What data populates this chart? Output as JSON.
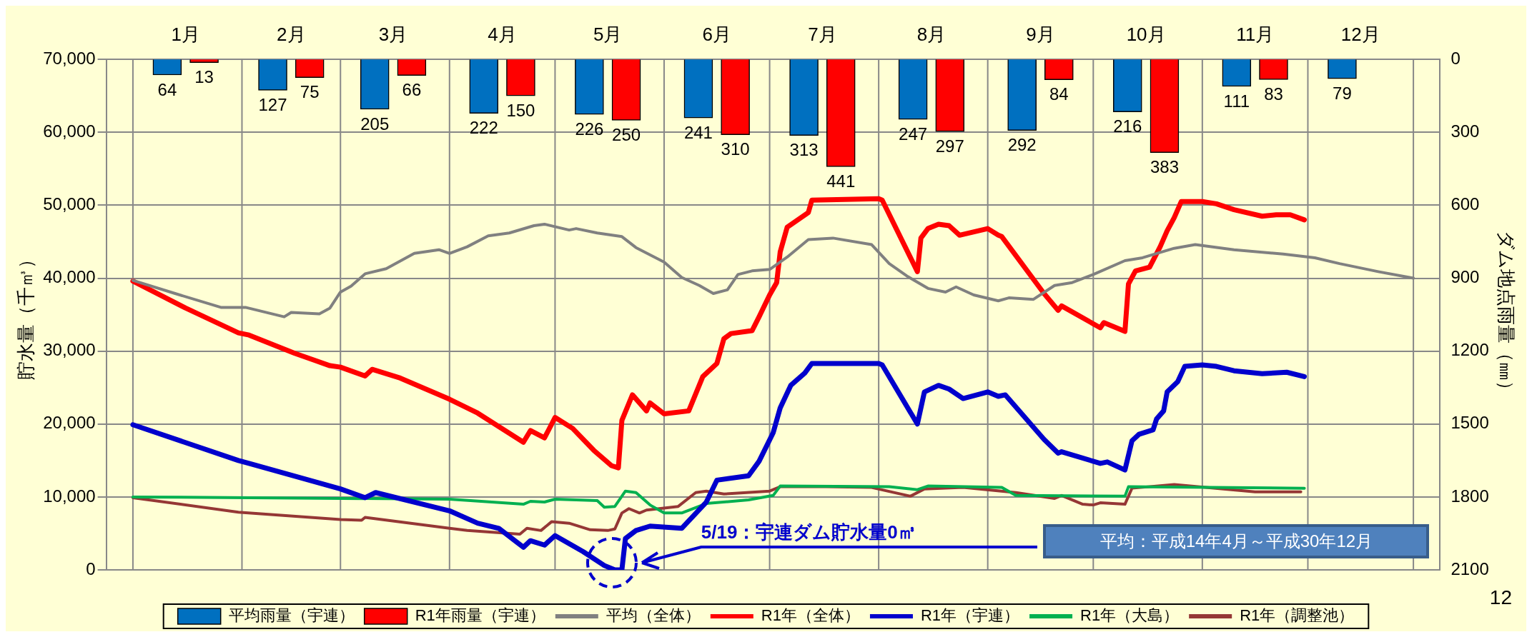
{
  "chart_data": {
    "type": "bar",
    "xlim": [
      "--01-01",
      "--12-31"
    ],
    "xticks": [
      {
        "value": "--01-01",
        "label": null
      },
      {
        "value": "--01-16",
        "label": "1月"
      },
      {
        "value": "--02-01",
        "label": null
      },
      {
        "value": "--02-15",
        "label": "2月"
      },
      {
        "value": "--03-01",
        "label": null
      },
      {
        "value": "--03-16",
        "label": "3月"
      },
      {
        "value": "--04-01",
        "label": null
      },
      {
        "value": "--04-16",
        "label": "4月"
      },
      {
        "value": "--05-01",
        "label": null
      },
      {
        "value": "--05-16",
        "label": "5月"
      },
      {
        "value": "--06-01",
        "label": null
      },
      {
        "value": "--06-16",
        "label": "6月"
      },
      {
        "value": "--07-01",
        "label": null
      },
      {
        "value": "--07-16",
        "label": "7月"
      },
      {
        "value": "--08-01",
        "label": null
      },
      {
        "value": "--08-16",
        "label": "8月"
      },
      {
        "value": "--09-01",
        "label": null
      },
      {
        "value": "--09-16",
        "label": "9月"
      },
      {
        "value": "--10-01",
        "label": null
      },
      {
        "value": "--10-16",
        "label": "10月"
      },
      {
        "value": "--11-01",
        "label": null
      },
      {
        "value": "--11-16",
        "label": "11月"
      },
      {
        "value": "--12-01",
        "label": null
      },
      {
        "value": "--12-16",
        "label": "12月"
      },
      {
        "value": "--12-31",
        "label": null
      }
    ],
    "ylabel": "貯水量（千㎥）",
    "y2label": "ダム地点雨量（㎜）",
    "ylim": [
      0,
      70000
    ],
    "yticks": [
      {
        "value": 0,
        "label": "0"
      },
      {
        "value": 10000,
        "label": "10,000"
      },
      {
        "value": 20000,
        "label": "20,000"
      },
      {
        "value": 30000,
        "label": "30,000"
      },
      {
        "value": 40000,
        "label": "40,000"
      },
      {
        "value": 50000,
        "label": "50,000"
      },
      {
        "value": 60000,
        "label": "60,000"
      },
      {
        "value": 70000,
        "label": "70,000"
      }
    ],
    "y2lim": [
      2100,
      0
    ],
    "y2ticks": [
      0,
      300,
      600,
      900,
      1200,
      1500,
      1800,
      2100
    ],
    "grid": true,
    "legend": "bottom",
    "annotations": [
      "5/19：宇連ダム貯水量0㎥",
      "平均：平成14年4月～平成30年12月",
      "12"
    ],
    "series": [
      {
        "name": "平均雨量（宇連）",
        "axis": "y2",
        "color": "#0070c0",
        "x": [
          "--01-16",
          "--02-15",
          "--03-16",
          "--04-16",
          "--05-16",
          "--06-16",
          "--07-16",
          "--08-16",
          "--09-16",
          "--10-16",
          "--11-16",
          "--12-16"
        ],
        "values": [
          64,
          127,
          205,
          222,
          226,
          241,
          313,
          247,
          292,
          216,
          111,
          79
        ],
        "value_labels": [
          "64",
          "127",
          "205",
          "222",
          "226",
          "241",
          "313",
          "247",
          "292",
          "216",
          "111",
          "79"
        ]
      },
      {
        "name": "R1年雨量（宇連）",
        "axis": "y2",
        "color": "#ff0000",
        "x": [
          "--01-16",
          "--02-15",
          "--03-16",
          "--04-16",
          "--05-16",
          "--06-16",
          "--07-16",
          "--08-16",
          "--09-16",
          "--10-16",
          "--11-16"
        ],
        "values": [
          13,
          75,
          66,
          150,
          250,
          310,
          441,
          297,
          84,
          383,
          83
        ],
        "value_labels": [
          "13",
          "75",
          "66",
          "150",
          "250",
          "310",
          "441",
          "297",
          "84",
          "383",
          "83"
        ]
      },
      {
        "name": "平均（全体）",
        "type": "line",
        "color": "#808080",
        "x": [
          "--01-01",
          "--01-13",
          "--01-26",
          "--02-02",
          "--02-13",
          "--02-15",
          "--02-23",
          "--02-26",
          "--03-01",
          "--03-04",
          "--03-08",
          "--03-14",
          "--03-22",
          "--03-29",
          "--04-01",
          "--04-06",
          "--04-12",
          "--04-18",
          "--04-25",
          "--04-28",
          "--05-05",
          "--05-07",
          "--05-13",
          "--05-20",
          "--05-24",
          "--06-01",
          "--06-06",
          "--06-11",
          "--06-15",
          "--06-19",
          "--06-22",
          "--06-26",
          "--07-01",
          "--07-06",
          "--07-12",
          "--07-19",
          "--07-30",
          "--08-04",
          "--08-09",
          "--08-15",
          "--08-20",
          "--08-23",
          "--08-28",
          "--09-04",
          "--09-07",
          "--09-14",
          "--09-20",
          "--09-25",
          "--10-01",
          "--10-10",
          "--10-15",
          "--10-24",
          "--10-30",
          "--11-10",
          "--11-24",
          "--12-03",
          "--12-10",
          "--12-21",
          "--12-31"
        ],
        "values": [
          39700,
          37900,
          36000,
          36000,
          34700,
          35300,
          35100,
          35900,
          38100,
          38900,
          40600,
          41300,
          43400,
          43900,
          43400,
          44300,
          45800,
          46200,
          47200,
          47400,
          46600,
          46800,
          46200,
          45700,
          44200,
          42200,
          40100,
          39000,
          37900,
          38400,
          40500,
          41000,
          41200,
          42900,
          45300,
          45500,
          44600,
          42000,
          40300,
          38600,
          38100,
          38800,
          37700,
          36900,
          37300,
          37100,
          39000,
          39400,
          40500,
          42400,
          42800,
          44100,
          44600,
          43900,
          43300,
          42800,
          42000,
          40900,
          40000
        ]
      },
      {
        "name": "R1年（全体）",
        "type": "line",
        "color": "#ff0000",
        "x": [
          "--01-01",
          "--01-16",
          "--01-31",
          "--02-03",
          "--02-16",
          "--02-26",
          "--03-01",
          "--03-08",
          "--03-10",
          "--03-18",
          "--04-01",
          "--04-09",
          "--04-22",
          "--04-24",
          "--04-28",
          "--05-01",
          "--05-06",
          "--05-12",
          "--05-17",
          "--05-19",
          "--05-20",
          "--05-23",
          "--05-27",
          "--05-28",
          "--06-01",
          "--06-08",
          "--06-12",
          "--06-16",
          "--06-18",
          "--06-20",
          "--06-26",
          "--06-28",
          "--07-01",
          "--07-03",
          "--07-04",
          "--07-06",
          "--07-12",
          "--07-13",
          "--08-01",
          "--08-02",
          "--08-12",
          "--08-13",
          "--08-15",
          "--08-18",
          "--08-21",
          "--08-24",
          "--09-01",
          "--09-04",
          "--09-05",
          "--09-17",
          "--09-21",
          "--09-22",
          "--10-03",
          "--10-04",
          "--10-10",
          "--10-11",
          "--10-13",
          "--10-17",
          "--10-20",
          "--10-22",
          "--10-24",
          "--10-26",
          "--11-01",
          "--11-05",
          "--11-10",
          "--11-18",
          "--11-22",
          "--11-26",
          "--11-30"
        ],
        "values": [
          39600,
          35900,
          32500,
          32200,
          29700,
          28000,
          27800,
          26600,
          27500,
          26300,
          23400,
          21500,
          17500,
          19100,
          18100,
          20900,
          19400,
          16400,
          14300,
          14000,
          20500,
          24000,
          21800,
          22900,
          21400,
          21800,
          26500,
          28300,
          31700,
          32400,
          32800,
          34700,
          37700,
          39400,
          43600,
          47000,
          49000,
          50700,
          50900,
          50700,
          40900,
          45500,
          46800,
          47400,
          47200,
          45900,
          46800,
          45900,
          45700,
          37900,
          35600,
          36200,
          33200,
          33900,
          32700,
          39200,
          41000,
          41500,
          44300,
          46500,
          48300,
          50500,
          50500,
          50200,
          49400,
          48500,
          48700,
          48700,
          48000
        ]
      },
      {
        "name": "R1年（宇連）",
        "type": "line",
        "color": "#0000cc",
        "x": [
          "--01-01",
          "--01-31",
          "--02-03",
          "--03-01",
          "--03-08",
          "--03-11",
          "--04-01",
          "--04-09",
          "--04-15",
          "--04-22",
          "--04-24",
          "--04-28",
          "--05-01",
          "--05-09",
          "--05-15",
          "--05-18",
          "--05-20",
          "--05-21",
          "--05-24",
          "--05-28",
          "--06-06",
          "--06-13",
          "--06-16",
          "--06-25",
          "--06-28",
          "--07-02",
          "--07-04",
          "--07-07",
          "--07-11",
          "--07-13",
          "--08-01",
          "--08-02",
          "--08-12",
          "--08-14",
          "--08-18",
          "--08-21",
          "--08-25",
          "--09-01",
          "--09-04",
          "--09-06",
          "--09-17",
          "--09-21",
          "--09-22",
          "--10-03",
          "--10-05",
          "--10-10",
          "--10-12",
          "--10-14",
          "--10-18",
          "--10-19",
          "--10-21",
          "--10-22",
          "--10-25",
          "--10-27",
          "--11-01",
          "--11-05",
          "--11-10",
          "--11-18",
          "--11-25",
          "--11-30"
        ],
        "values": [
          19900,
          15000,
          14600,
          11100,
          9900,
          10600,
          8100,
          6400,
          5700,
          3100,
          4000,
          3400,
          4700,
          2500,
          600,
          0,
          0,
          4300,
          5400,
          6000,
          5700,
          9300,
          12300,
          12900,
          14900,
          18800,
          22200,
          25300,
          27000,
          28300,
          28300,
          28100,
          20000,
          24400,
          25300,
          24800,
          23500,
          24400,
          23800,
          24000,
          17900,
          16000,
          16200,
          14600,
          14800,
          13700,
          17700,
          18600,
          19200,
          20700,
          21800,
          24400,
          25800,
          27900,
          28100,
          27900,
          27300,
          26900,
          27100,
          26500
        ]
      },
      {
        "name": "R1年（大島）",
        "type": "line",
        "color": "#00b050",
        "x": [
          "--01-01",
          "--04-01",
          "--04-22",
          "--04-24",
          "--04-28",
          "--05-01",
          "--05-13",
          "--05-15",
          "--05-18",
          "--05-21",
          "--05-24",
          "--05-28",
          "--06-01",
          "--06-06",
          "--06-13",
          "--06-25",
          "--07-02",
          "--07-04",
          "--08-04",
          "--08-12",
          "--08-15",
          "--09-05",
          "--09-09",
          "--10-10",
          "--10-11",
          "--11-30"
        ],
        "values": [
          10000,
          9700,
          9000,
          9400,
          9300,
          9700,
          9500,
          8600,
          8700,
          10800,
          10600,
          8900,
          7800,
          7800,
          9100,
          9600,
          10200,
          11500,
          11400,
          11000,
          11500,
          11300,
          10200,
          10100,
          11400,
          11200
        ]
      },
      {
        "name": "R1年（調整池）",
        "type": "line",
        "color": "#953735",
        "x": [
          "--01-01",
          "--01-31",
          "--03-01",
          "--03-07",
          "--03-08",
          "--04-01",
          "--04-06",
          "--04-21",
          "--04-23",
          "--04-27",
          "--04-30",
          "--05-05",
          "--05-11",
          "--05-16",
          "--05-18",
          "--05-20",
          "--05-22",
          "--05-25",
          "--05-27",
          "--06-05",
          "--06-10",
          "--06-13",
          "--06-18",
          "--07-01",
          "--07-04",
          "--07-17",
          "--07-30",
          "--08-10",
          "--08-14",
          "--08-25",
          "--09-09",
          "--09-20",
          "--09-22",
          "--09-28",
          "--10-01",
          "--10-03",
          "--10-10",
          "--10-12",
          "--10-24",
          "--11-16",
          "--11-29"
        ],
        "values": [
          9900,
          7900,
          6900,
          6800,
          7200,
          5700,
          5400,
          4900,
          5700,
          5400,
          6600,
          6400,
          5500,
          5400,
          5600,
          7800,
          8400,
          7800,
          8200,
          8700,
          10600,
          10800,
          10400,
          10800,
          11400,
          11400,
          11300,
          10100,
          11100,
          11300,
          10600,
          9800,
          10200,
          9000,
          8900,
          9200,
          9000,
          11200,
          11700,
          10700,
          10700
        ]
      }
    ]
  }
}
